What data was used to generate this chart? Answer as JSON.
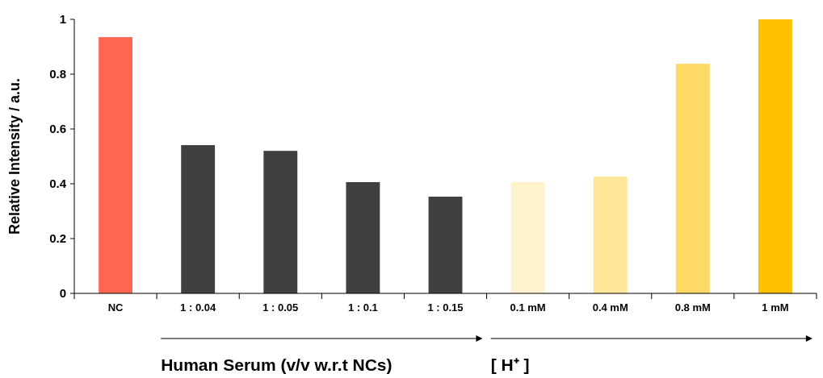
{
  "chart_data": {
    "type": "bar",
    "ylabel": "Relative Intensity / a.u.",
    "categories": [
      "NC",
      "1 : 0.04",
      "1 : 0.05",
      "1 : 0.1",
      "1 : 0.15",
      "0.1 mM",
      "0.4 mM",
      "0.8 mM",
      "1 mM"
    ],
    "values": [
      0.935,
      0.541,
      0.52,
      0.406,
      0.353,
      0.406,
      0.426,
      0.838,
      1.0
    ],
    "colors": [
      "#ff6550",
      "#404040",
      "#404040",
      "#404040",
      "#404040",
      "#fff2cc",
      "#ffe699",
      "#ffd966",
      "#ffc000"
    ],
    "ylim": [
      0,
      1
    ],
    "yticks": [
      0,
      0.2,
      0.4,
      0.6,
      0.8,
      1
    ],
    "grid": false,
    "annotations": [
      "Human Serum (v/v w.r.t NCs)",
      "[ H⁺ ]"
    ]
  }
}
